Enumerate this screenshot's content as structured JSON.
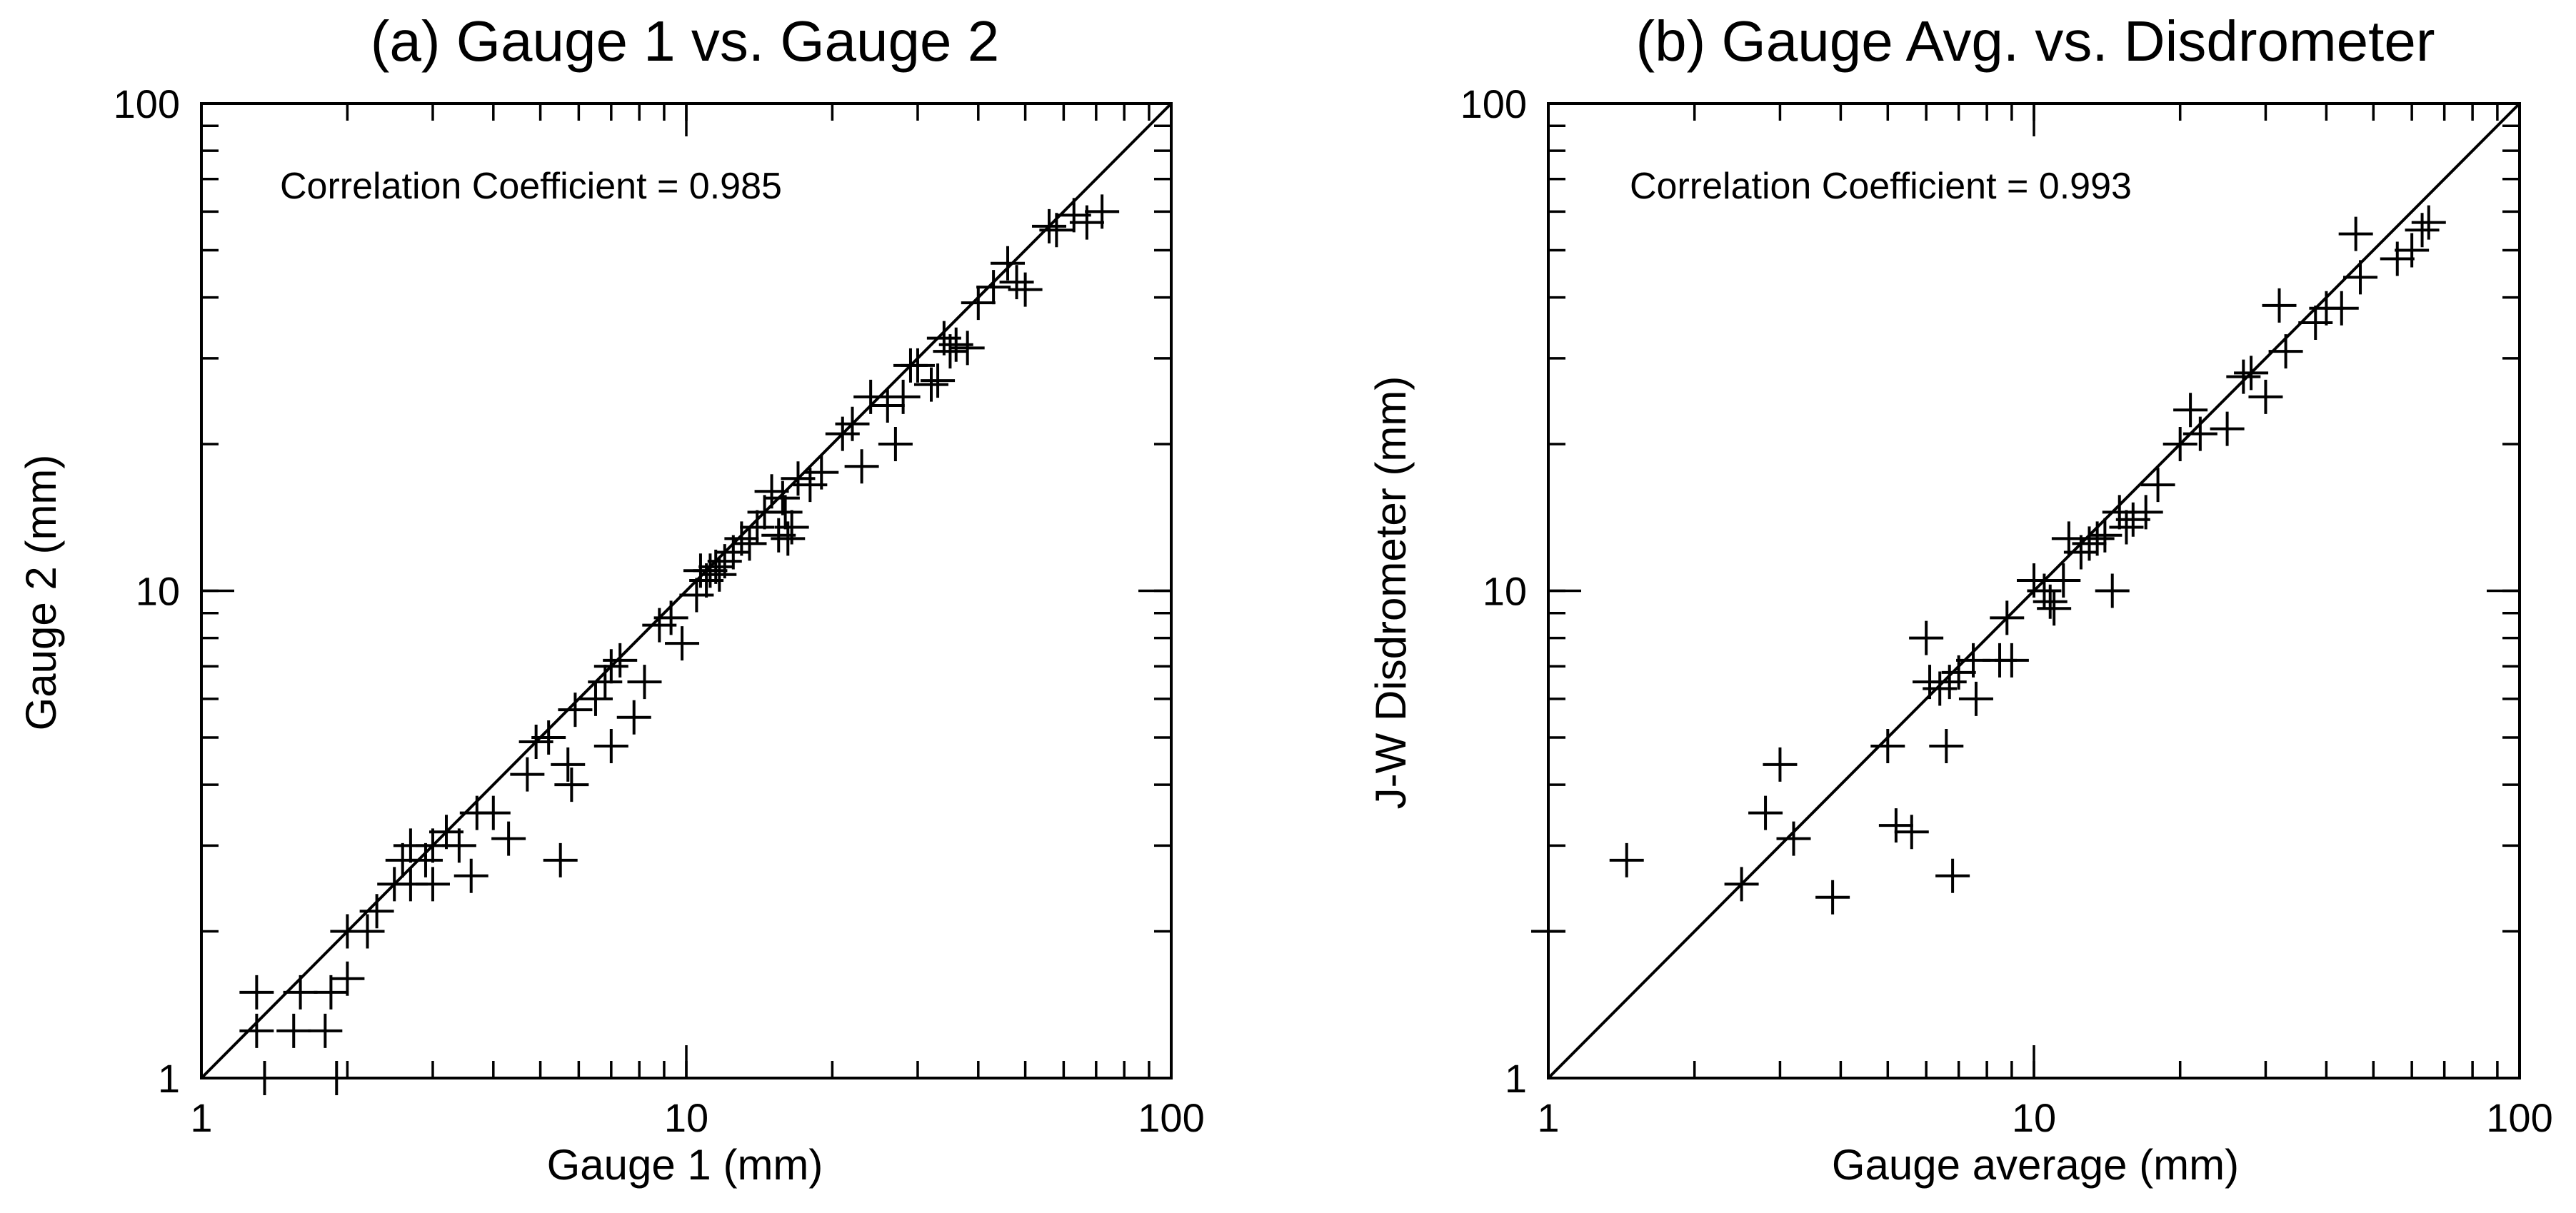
{
  "chart_data": [
    {
      "type": "scatter",
      "title": "(a) Gauge 1 vs. Gauge 2",
      "xlabel": "Gauge 1 (mm)",
      "ylabel": "Gauge 2 (mm)",
      "xscale": "log",
      "yscale": "log",
      "xlim": [
        1,
        100
      ],
      "ylim": [
        1,
        100
      ],
      "xticks": [
        "1",
        "10",
        "100"
      ],
      "yticks": [
        "1",
        "10",
        "100"
      ],
      "marker": "+",
      "reference_line": "1:1",
      "annotation": "Correlation Coefficient = 0.985",
      "points": [
        [
          1.3,
          1.25
        ],
        [
          1.3,
          1.5
        ],
        [
          1.35,
          1.0
        ],
        [
          1.55,
          1.25
        ],
        [
          1.6,
          1.5
        ],
        [
          1.8,
          1.25
        ],
        [
          1.85,
          1.5
        ],
        [
          1.9,
          1.0
        ],
        [
          2.0,
          1.6
        ],
        [
          2.0,
          2.0
        ],
        [
          2.2,
          2.0
        ],
        [
          2.3,
          2.2
        ],
        [
          2.5,
          2.5
        ],
        [
          2.6,
          2.8
        ],
        [
          2.7,
          2.5
        ],
        [
          2.7,
          3.0
        ],
        [
          2.9,
          2.8
        ],
        [
          3.0,
          2.5
        ],
        [
          3.0,
          3.0
        ],
        [
          3.2,
          3.2
        ],
        [
          3.4,
          3.0
        ],
        [
          3.6,
          2.6
        ],
        [
          3.7,
          3.5
        ],
        [
          4.0,
          3.5
        ],
        [
          4.3,
          3.1
        ],
        [
          4.7,
          4.2
        ],
        [
          4.9,
          4.9
        ],
        [
          5.2,
          5.0
        ],
        [
          5.5,
          2.8
        ],
        [
          5.7,
          4.4
        ],
        [
          5.8,
          4.0
        ],
        [
          5.9,
          5.7
        ],
        [
          6.5,
          6.0
        ],
        [
          6.8,
          6.5
        ],
        [
          7.0,
          4.8
        ],
        [
          7.0,
          7.0
        ],
        [
          7.3,
          7.2
        ],
        [
          7.8,
          5.5
        ],
        [
          8.2,
          6.5
        ],
        [
          8.8,
          8.5
        ],
        [
          9.3,
          8.8
        ],
        [
          9.8,
          7.8
        ],
        [
          10.5,
          9.8
        ],
        [
          10.7,
          11.0
        ],
        [
          11.0,
          10.5
        ],
        [
          11.2,
          11.0
        ],
        [
          11.5,
          11.2
        ],
        [
          11.7,
          10.8
        ],
        [
          12.0,
          11.5
        ],
        [
          12.5,
          12.0
        ],
        [
          13.0,
          12.8
        ],
        [
          13.5,
          12.5
        ],
        [
          14.0,
          13.5
        ],
        [
          14.5,
          14.5
        ],
        [
          15.0,
          16.0
        ],
        [
          15.5,
          13.0
        ],
        [
          15.8,
          15.5
        ],
        [
          16.0,
          14.5
        ],
        [
          16.2,
          12.8
        ],
        [
          16.5,
          13.5
        ],
        [
          17.0,
          17.0
        ],
        [
          18.0,
          16.5
        ],
        [
          19.0,
          17.5
        ],
        [
          21.0,
          21.0
        ],
        [
          22.0,
          22.0
        ],
        [
          23.0,
          18.0
        ],
        [
          24.0,
          25.0
        ],
        [
          26.0,
          24.0
        ],
        [
          27.0,
          20.0
        ],
        [
          28.0,
          25.0
        ],
        [
          29.0,
          29.0
        ],
        [
          30.0,
          29.0
        ],
        [
          32.0,
          26.5
        ],
        [
          33.0,
          27.0
        ],
        [
          34.0,
          33.0
        ],
        [
          35.0,
          31.0
        ],
        [
          36.0,
          32.0
        ],
        [
          38.0,
          31.5
        ],
        [
          40.0,
          39.0
        ],
        [
          43.0,
          42.0
        ],
        [
          46.0,
          47.0
        ],
        [
          48.0,
          43.0
        ],
        [
          50.0,
          41.5
        ],
        [
          56.0,
          56.0
        ],
        [
          58.0,
          55.0
        ],
        [
          63.0,
          59.0
        ],
        [
          67.0,
          57.0
        ],
        [
          72.0,
          60.0
        ]
      ]
    },
    {
      "type": "scatter",
      "title": "(b) Gauge Avg. vs. Disdrometer",
      "xlabel": "Gauge average (mm)",
      "ylabel": "J-W Disdrometer (mm)",
      "xscale": "log",
      "yscale": "log",
      "xlim": [
        1,
        100
      ],
      "ylim": [
        1,
        100
      ],
      "xticks": [
        "1",
        "10",
        "100"
      ],
      "yticks": [
        "1",
        "10",
        "100"
      ],
      "marker": "+",
      "reference_line": "1:1",
      "annotation": "Correlation Coefficient = 0.993",
      "points": [
        [
          1.0,
          2.0
        ],
        [
          1.45,
          2.8
        ],
        [
          2.5,
          2.5
        ],
        [
          2.8,
          3.5
        ],
        [
          3.0,
          4.4
        ],
        [
          3.2,
          3.1
        ],
        [
          3.85,
          2.35
        ],
        [
          5.0,
          4.8
        ],
        [
          5.2,
          3.3
        ],
        [
          5.6,
          3.2
        ],
        [
          6.0,
          8.0
        ],
        [
          6.1,
          6.5
        ],
        [
          6.4,
          6.3
        ],
        [
          6.6,
          4.8
        ],
        [
          6.7,
          6.5
        ],
        [
          6.8,
          2.6
        ],
        [
          7.0,
          6.8
        ],
        [
          7.5,
          7.2
        ],
        [
          7.6,
          6.0
        ],
        [
          8.5,
          7.2
        ],
        [
          8.8,
          8.8
        ],
        [
          9.0,
          7.2
        ],
        [
          10.0,
          10.5
        ],
        [
          10.5,
          10.0
        ],
        [
          10.8,
          9.5
        ],
        [
          11.0,
          9.2
        ],
        [
          11.5,
          10.5
        ],
        [
          11.8,
          12.8
        ],
        [
          12.5,
          12.0
        ],
        [
          13.0,
          12.5
        ],
        [
          13.5,
          12.8
        ],
        [
          14.0,
          13.0
        ],
        [
          14.5,
          10.0
        ],
        [
          15.0,
          14.5
        ],
        [
          15.5,
          13.5
        ],
        [
          16.0,
          14.0
        ],
        [
          17.0,
          14.5
        ],
        [
          18.0,
          16.5
        ],
        [
          20.0,
          20.0
        ],
        [
          21.0,
          23.5
        ],
        [
          22.0,
          21.0
        ],
        [
          25.0,
          21.5
        ],
        [
          27.0,
          27.5
        ],
        [
          28.0,
          28.0
        ],
        [
          30.0,
          25.0
        ],
        [
          32.0,
          38.5
        ],
        [
          33.0,
          31.0
        ],
        [
          38.0,
          35.5
        ],
        [
          40.0,
          38.0
        ],
        [
          43.0,
          38.0
        ],
        [
          46.0,
          54.0
        ],
        [
          47.0,
          44.0
        ],
        [
          56.0,
          48.0
        ],
        [
          60.0,
          50.0
        ],
        [
          63.0,
          55.0
        ],
        [
          65.0,
          57.0
        ]
      ]
    }
  ]
}
